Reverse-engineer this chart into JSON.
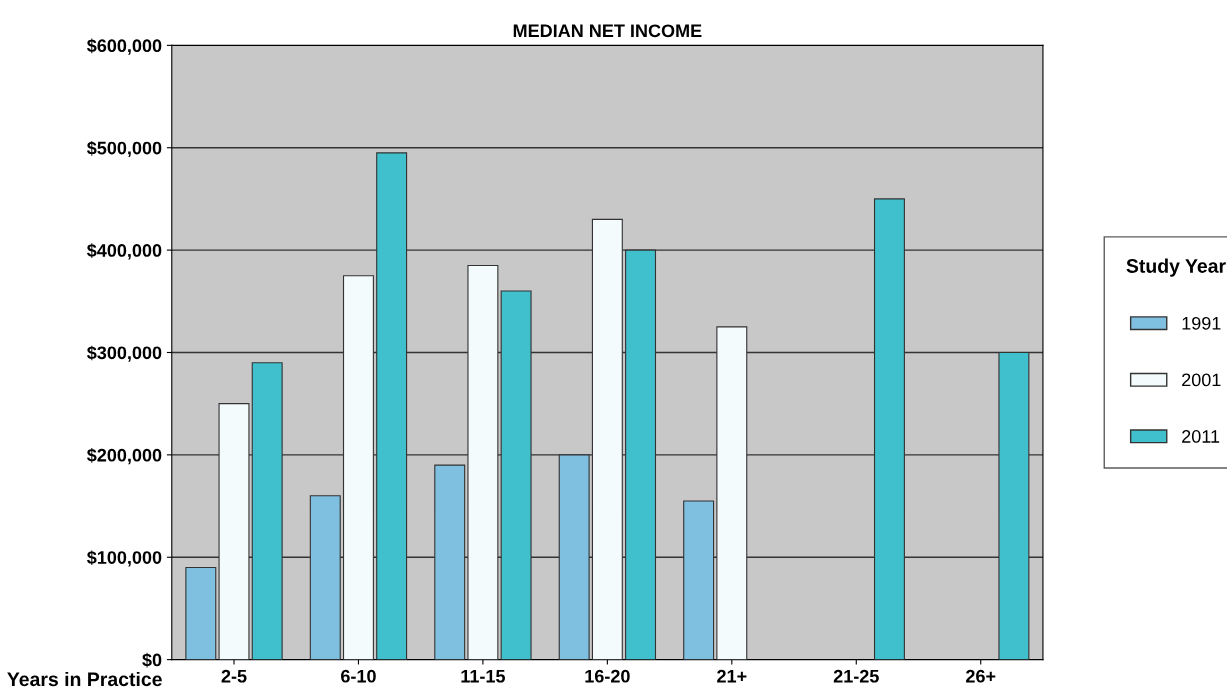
{
  "chart_data": {
    "type": "bar",
    "title": "MEDIAN NET INCOME",
    "xlabel": "Years in Practice",
    "legend_title": "Study Year",
    "categories": [
      "2-5",
      "6-10",
      "11-15",
      "16-20",
      "21+",
      "21-25",
      "26+"
    ],
    "series": [
      {
        "name": "1991",
        "color": "#7fbfe0",
        "values": [
          90000,
          160000,
          190000,
          200000,
          155000,
          null,
          null
        ]
      },
      {
        "name": "2001",
        "color": "#f4fbfd",
        "values": [
          250000,
          375000,
          385000,
          430000,
          325000,
          null,
          null
        ]
      },
      {
        "name": "2011",
        "color": "#40c0cc",
        "values": [
          290000,
          495000,
          360000,
          400000,
          null,
          450000,
          300000
        ]
      }
    ],
    "ylim": [
      0,
      600000
    ],
    "yticks": [
      {
        "value": 0,
        "label": "$0"
      },
      {
        "value": 100000,
        "label": "$100,000"
      },
      {
        "value": 200000,
        "label": "$200,000"
      },
      {
        "value": 300000,
        "label": "$300,000"
      },
      {
        "value": 400000,
        "label": "$400,000"
      },
      {
        "value": 500000,
        "label": "$500,000"
      },
      {
        "value": 600000,
        "label": "$600,000"
      }
    ],
    "grid": "y",
    "legend": "right"
  }
}
